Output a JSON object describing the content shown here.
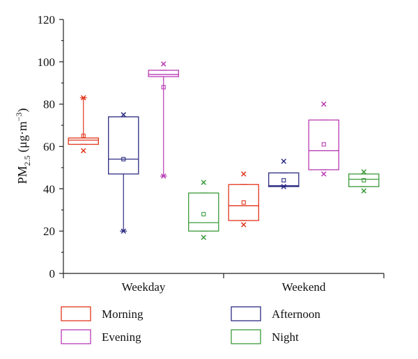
{
  "chart_data": {
    "type": "box",
    "ylabel": {
      "base": "PM",
      "sub": "2.5",
      "unit": " (μg·m",
      "sup": "−3",
      "close": ")"
    },
    "ylim": [
      0,
      120
    ],
    "yticks": [
      0,
      20,
      40,
      60,
      80,
      100,
      120
    ],
    "categories": [
      "Weekday",
      "Weekend"
    ],
    "grid": false,
    "legend_position": "bottom",
    "series": [
      {
        "name": "Morning",
        "color": "#e0351c",
        "marker": "x",
        "boxes": [
          {
            "category": "Weekday",
            "min": 58,
            "q1": 61,
            "median": 63,
            "q3": 64,
            "max": 83,
            "mean": 65,
            "whisker_low": 61,
            "whisker_high": 83
          },
          {
            "category": "Weekend",
            "min": 23,
            "q1": 25,
            "median": 32,
            "q3": 42,
            "max": 47,
            "mean": 33.5,
            "whisker_low": 25,
            "whisker_high": 42
          }
        ]
      },
      {
        "name": "Afternoon",
        "color": "#2b2a82",
        "marker": "x",
        "boxes": [
          {
            "category": "Weekday",
            "min": 20,
            "q1": 47,
            "median": 54,
            "q3": 74,
            "max": 75,
            "mean": 54,
            "whisker_low": 20,
            "whisker_high": 74
          },
          {
            "category": "Weekend",
            "min": 41,
            "q1": 41,
            "median": 41.5,
            "q3": 47.5,
            "max": 53,
            "mean": 44,
            "whisker_low": 41,
            "whisker_high": 47.5
          }
        ]
      },
      {
        "name": "Evening",
        "color": "#b83ab4",
        "marker": "x",
        "boxes": [
          {
            "category": "Weekday",
            "min": 46,
            "q1": 93,
            "median": 94,
            "q3": 96,
            "max": 99,
            "mean": 88,
            "whisker_low": 46,
            "whisker_high": 96
          },
          {
            "category": "Weekend",
            "min": 47,
            "q1": 49,
            "median": 58,
            "q3": 72.5,
            "max": 80,
            "mean": 61,
            "whisker_low": 49,
            "whisker_high": 72.5
          }
        ]
      },
      {
        "name": "Night",
        "color": "#3a9a3a",
        "marker": "x",
        "boxes": [
          {
            "category": "Weekday",
            "min": 17,
            "q1": 20,
            "median": 24,
            "q3": 38,
            "max": 43,
            "mean": 28,
            "whisker_low": 20,
            "whisker_high": 38
          },
          {
            "category": "Weekend",
            "min": 39,
            "q1": 41,
            "median": 44.5,
            "q3": 47,
            "max": 48,
            "mean": 44,
            "whisker_low": 41,
            "whisker_high": 47
          }
        ]
      }
    ]
  }
}
